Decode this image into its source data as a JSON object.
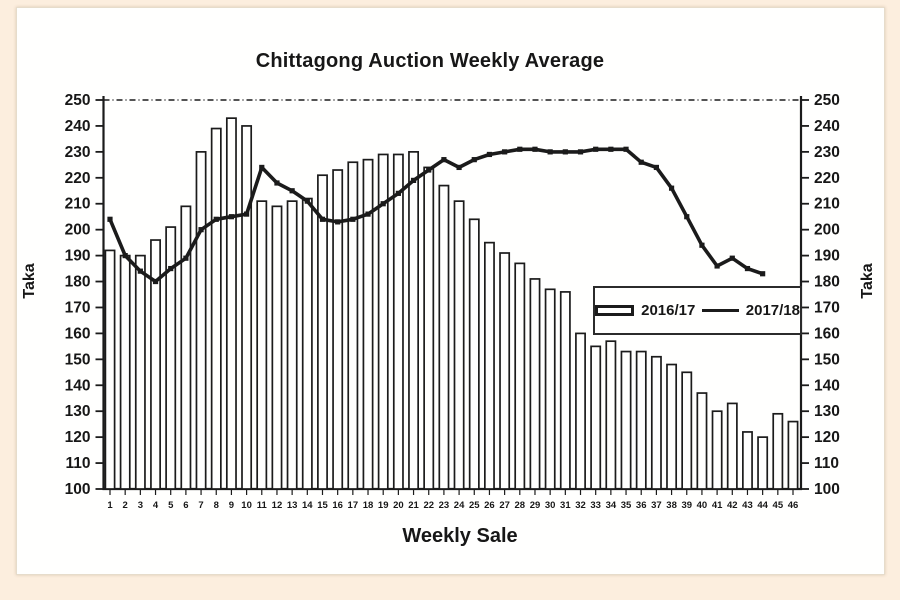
{
  "page": {
    "frame_color": "#fceede",
    "panel_color": "#fffffe",
    "ink_color": "#1b1b1b"
  },
  "chart": {
    "title": "Chittagong Auction Weekly Average",
    "x_axis_title": "Weekly Sale",
    "y_axis_title_left": "Taka",
    "y_axis_title_right": "Taka",
    "legend": [
      {
        "label": "2016/17",
        "marker": "hollow-bar"
      },
      {
        "label": "2017/18",
        "marker": "solid-line"
      }
    ]
  },
  "chart_data": {
    "type": "combo",
    "title": "Chittagong Auction Weekly Average",
    "xlabel": "Weekly Sale",
    "ylabel_left": "Taka",
    "ylabel_right": "Taka",
    "ylim": [
      100,
      250
    ],
    "y_ticks": [
      100,
      110,
      120,
      130,
      140,
      150,
      160,
      170,
      180,
      190,
      200,
      210,
      220,
      230,
      240,
      250
    ],
    "grid": false,
    "legend_position": "middle-right",
    "bar_fill": "#fffffe",
    "bar_border": "#1b1b1b",
    "line_color": "#1b1b1b",
    "categories": [
      1,
      2,
      3,
      4,
      5,
      6,
      7,
      8,
      9,
      10,
      11,
      12,
      13,
      14,
      15,
      16,
      17,
      18,
      19,
      20,
      21,
      22,
      23,
      24,
      25,
      26,
      27,
      28,
      29,
      30,
      31,
      32,
      33,
      34,
      35,
      36,
      37,
      38,
      39,
      40,
      41,
      42,
      43,
      44,
      45,
      46
    ],
    "series": [
      {
        "name": "2016/17",
        "type": "bar",
        "values": [
          192,
          190,
          190,
          196,
          201,
          209,
          230,
          239,
          243,
          240,
          211,
          209,
          211,
          212,
          221,
          223,
          226,
          227,
          229,
          229,
          230,
          224,
          217,
          211,
          204,
          195,
          191,
          187,
          181,
          177,
          176,
          160,
          155,
          157,
          153,
          153,
          151,
          148,
          145,
          137,
          130,
          133,
          122,
          120,
          129,
          126
        ]
      },
      {
        "name": "2017/18",
        "type": "line",
        "values": [
          204,
          190,
          184,
          180,
          185,
          189,
          200,
          204,
          205,
          206,
          224,
          218,
          215,
          211,
          204,
          203,
          204,
          206,
          210,
          214,
          219,
          223,
          227,
          224,
          227,
          229,
          230,
          231,
          231,
          230,
          230,
          230,
          231,
          231,
          231,
          226,
          224,
          216,
          205,
          194,
          186,
          189,
          185,
          183,
          null,
          null
        ]
      }
    ]
  }
}
